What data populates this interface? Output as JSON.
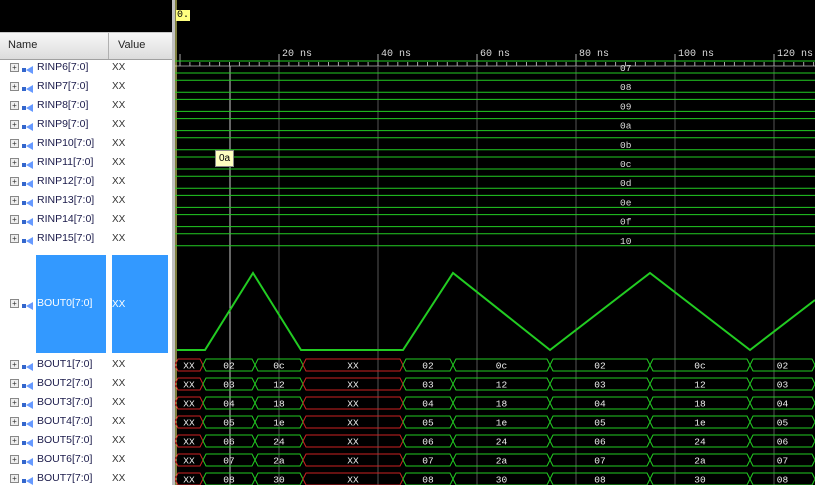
{
  "header": {
    "name_label": "Name",
    "value_label": "Value",
    "cursor_value": "0."
  },
  "tooltip": "0a",
  "time_ticks": [
    "20 ns",
    "40 ns",
    "60 ns",
    "80 ns",
    "100 ns",
    "120 ns"
  ],
  "rinp_rows": [
    {
      "name": "RINP6[7:0]",
      "value": "XX",
      "bus_label": "07"
    },
    {
      "name": "RINP7[7:0]",
      "value": "XX",
      "bus_label": "08"
    },
    {
      "name": "RINP8[7:0]",
      "value": "XX",
      "bus_label": "09"
    },
    {
      "name": "RINP9[7:0]",
      "value": "XX",
      "bus_label": "0a"
    },
    {
      "name": "RINP10[7:0]",
      "value": "XX",
      "bus_label": "0b"
    },
    {
      "name": "RINP11[7:0]",
      "value": "XX",
      "bus_label": "0c"
    },
    {
      "name": "RINP12[7:0]",
      "value": "XX",
      "bus_label": "0d"
    },
    {
      "name": "RINP13[7:0]",
      "value": "XX",
      "bus_label": "0e"
    },
    {
      "name": "RINP14[7:0]",
      "value": "XX",
      "bus_label": "0f"
    },
    {
      "name": "RINP15[7:0]",
      "value": "XX",
      "bus_label": "10"
    }
  ],
  "bout0": {
    "name": "BOUT0[7:0]",
    "value": "XX"
  },
  "bout_rows": [
    {
      "name": "BOUT1[7:0]",
      "value": "XX",
      "segs": [
        "XX",
        "02",
        "0c",
        "XX",
        "02",
        "0c",
        "02",
        "0c",
        "02"
      ]
    },
    {
      "name": "BOUT2[7:0]",
      "value": "XX",
      "segs": [
        "XX",
        "03",
        "12",
        "XX",
        "03",
        "12",
        "03",
        "12",
        "03"
      ]
    },
    {
      "name": "BOUT3[7:0]",
      "value": "XX",
      "segs": [
        "XX",
        "04",
        "18",
        "XX",
        "04",
        "18",
        "04",
        "18",
        "04"
      ]
    },
    {
      "name": "BOUT4[7:0]",
      "value": "XX",
      "segs": [
        "XX",
        "05",
        "1e",
        "XX",
        "05",
        "1e",
        "05",
        "1e",
        "05"
      ]
    },
    {
      "name": "BOUT5[7:0]",
      "value": "XX",
      "segs": [
        "XX",
        "06",
        "24",
        "XX",
        "06",
        "24",
        "06",
        "24",
        "06"
      ]
    },
    {
      "name": "BOUT6[7:0]",
      "value": "XX",
      "segs": [
        "XX",
        "07",
        "2a",
        "XX",
        "07",
        "2a",
        "07",
        "2a",
        "07"
      ]
    },
    {
      "name": "BOUT7[7:0]",
      "value": "XX",
      "segs": [
        "XX",
        "08",
        "30",
        "XX",
        "08",
        "30",
        "08",
        "30",
        "08"
      ]
    }
  ],
  "colors": {
    "wave_green": "#22cc22",
    "undefined_red": "#cc2222",
    "selection": "#3399ff",
    "cursor": "#ffff80"
  }
}
